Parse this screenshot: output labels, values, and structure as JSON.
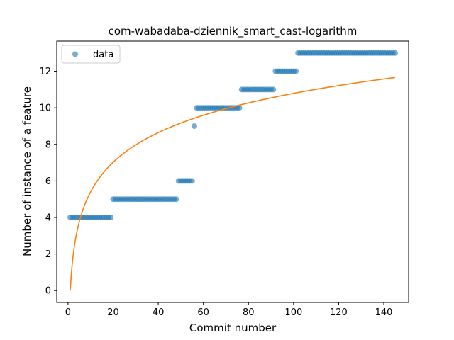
{
  "chart_data": {
    "type": "scatter",
    "title": "com-wabadaba-dziennik_smart_cast-logarithm",
    "xlabel": "Commit number",
    "ylabel": "Number of instance of a feature",
    "xlim": [
      -5,
      151
    ],
    "ylim": [
      -0.65,
      13.65
    ],
    "xticks": [
      0,
      20,
      40,
      60,
      80,
      100,
      120,
      140
    ],
    "yticks": [
      0,
      2,
      4,
      6,
      8,
      10,
      12
    ],
    "grid": false,
    "legend": {
      "location": "upper-left",
      "entries": [
        "data"
      ]
    },
    "colors": {
      "data": "#1f77b4",
      "fit": "#ff7f0e"
    },
    "series": [
      {
        "name": "data",
        "kind": "scatter",
        "segments": [
          {
            "x_start": 1,
            "x_end": 19,
            "y": 4
          },
          {
            "x_start": 20,
            "x_end": 48,
            "y": 5
          },
          {
            "x_start": 49,
            "x_end": 55,
            "y": 6
          },
          {
            "x_start": 56,
            "x_end": 56,
            "y": 9
          },
          {
            "x_start": 57,
            "x_end": 76,
            "y": 10
          },
          {
            "x_start": 77,
            "x_end": 91,
            "y": 11
          },
          {
            "x_start": 92,
            "x_end": 101,
            "y": 12
          },
          {
            "x_start": 102,
            "x_end": 145,
            "y": 13
          }
        ]
      },
      {
        "kind": "line",
        "fit": {
          "function": "a*ln(x)",
          "a": 2.343,
          "x_start": 1,
          "x_end": 145
        }
      }
    ]
  }
}
